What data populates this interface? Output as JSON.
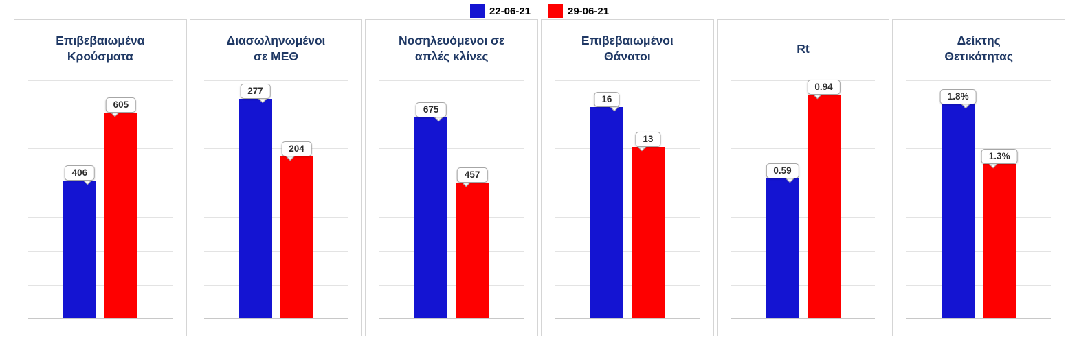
{
  "legend": {
    "items": [
      {
        "label": "22-06-21",
        "color": "#1414d2"
      },
      {
        "label": "29-06-21",
        "color": "#fe0000"
      }
    ]
  },
  "chart_data": [
    {
      "type": "bar",
      "title": "Επιβεβαιωμένα\nΚρούσματα",
      "categories": [
        "22-06-21",
        "29-06-21"
      ],
      "values": [
        406,
        605
      ],
      "data_labels": [
        "406",
        "605"
      ],
      "colors": [
        "#1414d2",
        "#fe0000"
      ],
      "xlabel": "",
      "ylabel": "",
      "ylim": [
        0,
        700
      ],
      "grid": true,
      "gridlines": 7,
      "legend_position": "top"
    },
    {
      "type": "bar",
      "title": "Διασωληνωμένοι\nσε ΜΕΘ",
      "categories": [
        "22-06-21",
        "29-06-21"
      ],
      "values": [
        277,
        204
      ],
      "data_labels": [
        "277",
        "204"
      ],
      "colors": [
        "#1414d2",
        "#fe0000"
      ],
      "xlabel": "",
      "ylabel": "",
      "ylim": [
        0,
        300
      ],
      "grid": true,
      "gridlines": 7,
      "legend_position": "top"
    },
    {
      "type": "bar",
      "title": "Νοσηλευόμενοι σε\nαπλές κλίνες",
      "categories": [
        "22-06-21",
        "29-06-21"
      ],
      "values": [
        675,
        457
      ],
      "data_labels": [
        "675",
        "457"
      ],
      "colors": [
        "#1414d2",
        "#fe0000"
      ],
      "xlabel": "",
      "ylabel": "",
      "ylim": [
        0,
        800
      ],
      "grid": true,
      "gridlines": 7,
      "legend_position": "top"
    },
    {
      "type": "bar",
      "title": "Επιβεβαιωμένοι\nΘάνατοι",
      "categories": [
        "22-06-21",
        "29-06-21"
      ],
      "values": [
        16,
        13
      ],
      "data_labels": [
        "16",
        "13"
      ],
      "colors": [
        "#1414d2",
        "#fe0000"
      ],
      "xlabel": "",
      "ylabel": "",
      "ylim": [
        0,
        18
      ],
      "grid": true,
      "gridlines": 7,
      "legend_position": "top"
    },
    {
      "type": "bar",
      "title": "Rt",
      "categories": [
        "22-06-21",
        "29-06-21"
      ],
      "values": [
        0.59,
        0.94
      ],
      "data_labels": [
        "0.59",
        "0.94"
      ],
      "colors": [
        "#1414d2",
        "#fe0000"
      ],
      "xlabel": "",
      "ylabel": "",
      "ylim": [
        0,
        1.0
      ],
      "grid": true,
      "gridlines": 7,
      "legend_position": "top"
    },
    {
      "type": "bar",
      "title": "Δείκτης\nΘετικότητας",
      "categories": [
        "22-06-21",
        "29-06-21"
      ],
      "values": [
        1.8,
        1.3
      ],
      "data_labels": [
        "1.8%",
        "1.3%"
      ],
      "colors": [
        "#1414d2",
        "#fe0000"
      ],
      "xlabel": "",
      "ylabel": "",
      "ylim": [
        0,
        2.0
      ],
      "grid": true,
      "gridlines": 7,
      "legend_position": "top"
    }
  ]
}
